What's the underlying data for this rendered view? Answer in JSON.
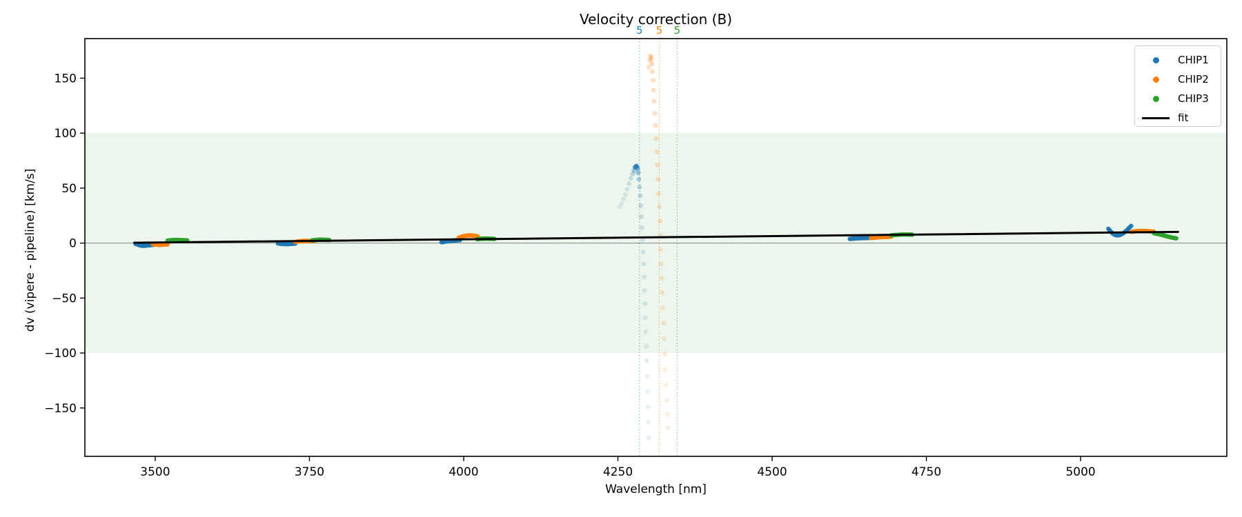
{
  "chart_data": {
    "type": "scatter",
    "title": "Velocity correction (B)",
    "xlabel": "Wavelength [nm]",
    "ylabel": "dv (vipere - pipeline) [km/s]",
    "xlim": [
      3386,
      5237
    ],
    "ylim": [
      -194,
      186
    ],
    "x_ticks": {
      "values": [
        3500,
        3750,
        4000,
        4250,
        4500,
        4750,
        5000
      ],
      "labels": [
        "3500",
        "3750",
        "4000",
        "4250",
        "4500",
        "4750",
        "5000"
      ]
    },
    "y_ticks": {
      "values": [
        150,
        100,
        50,
        0,
        -50,
        -100,
        -150
      ],
      "labels": [
        "150",
        "100",
        "50",
        "0",
        "−50",
        "−100",
        "−150"
      ]
    },
    "grid": false,
    "legend_position": "upper right",
    "band": {
      "ymin": -100,
      "ymax": 100,
      "color": "rgba(44,160,44,0.09)"
    },
    "zero_line": {
      "y": 0,
      "color": "#808080"
    },
    "vlines": [
      {
        "x": 4285,
        "label": "5",
        "color": "#1f77b4"
      },
      {
        "x": 4317,
        "label": "5",
        "color": "#ff7f0e"
      },
      {
        "x": 4346,
        "label": "5",
        "color": "#2ca02c"
      }
    ],
    "fit": {
      "name": "fit",
      "color": "#000000",
      "x": [
        3466,
        5158
      ],
      "y": [
        0.3,
        10.2
      ]
    },
    "series": [
      {
        "name": "CHIP1",
        "color": "#1f77b4",
        "segments": [
          [
            [
              3468,
              -0.6
            ],
            [
              3471,
              -1.2
            ],
            [
              3474,
              -1.8
            ],
            [
              3477,
              -2.3
            ],
            [
              3480,
              -2.5
            ],
            [
              3484,
              -2.4
            ],
            [
              3488,
              -2.1
            ],
            [
              3492,
              -1.9
            ],
            [
              3495,
              -1.7
            ],
            [
              3497,
              -1.6
            ]
          ],
          [
            [
              3699,
              -0.3
            ],
            [
              3703,
              -0.6
            ],
            [
              3707,
              -0.8
            ],
            [
              3711,
              -0.9
            ],
            [
              3715,
              -0.9
            ],
            [
              3719,
              -0.8
            ],
            [
              3723,
              -0.6
            ],
            [
              3727,
              -0.5
            ]
          ],
          [
            [
              3964,
              0.8
            ],
            [
              3968,
              1.1
            ],
            [
              3972,
              1.5
            ],
            [
              3976,
              1.8
            ],
            [
              3980,
              2.1
            ],
            [
              3984,
              2.3
            ],
            [
              3988,
              2.5
            ],
            [
              3991,
              2.6
            ],
            [
              3994,
              2.7
            ]
          ],
          [
            [
              4626,
              3.8
            ],
            [
              4631,
              4.0
            ],
            [
              4636,
              4.2
            ],
            [
              4641,
              4.4
            ],
            [
              4646,
              4.5
            ],
            [
              4651,
              4.6
            ],
            [
              4655,
              4.7
            ],
            [
              4660,
              4.9
            ]
          ],
          [
            [
              5045,
              13.0
            ],
            [
              5048,
              11.0
            ],
            [
              5051,
              9.2
            ],
            [
              5054,
              7.9
            ],
            [
              5057,
              7.2
            ],
            [
              5060,
              7.0
            ],
            [
              5063,
              7.3
            ],
            [
              5066,
              7.9
            ],
            [
              5069,
              8.9
            ],
            [
              5072,
              10.2
            ],
            [
              5075,
              11.7
            ],
            [
              5078,
              13.4
            ],
            [
              5080,
              14.6
            ],
            [
              5082,
              15.6
            ]
          ]
        ]
      },
      {
        "name": "CHIP2",
        "color": "#ff7f0e",
        "segments": [
          [
            [
              3496,
              -1.0
            ],
            [
              3500,
              -1.3
            ],
            [
              3504,
              -1.5
            ],
            [
              3508,
              -1.6
            ],
            [
              3512,
              -1.5
            ],
            [
              3516,
              -1.3
            ],
            [
              3520,
              -1.2
            ]
          ],
          [
            [
              3727,
              1.0
            ],
            [
              3731,
              1.4
            ],
            [
              3735,
              1.7
            ],
            [
              3739,
              1.9
            ],
            [
              3743,
              2.0
            ],
            [
              3747,
              2.0
            ],
            [
              3751,
              1.9
            ],
            [
              3757,
              1.7
            ]
          ],
          [
            [
              3992,
              5.0
            ],
            [
              3996,
              5.7
            ],
            [
              4000,
              6.3
            ],
            [
              4004,
              6.8
            ],
            [
              4008,
              7.0
            ],
            [
              4012,
              7.0
            ],
            [
              4016,
              6.8
            ],
            [
              4019,
              6.5
            ],
            [
              4023,
              6.1
            ]
          ],
          [
            [
              4660,
              4.6
            ],
            [
              4665,
              4.9
            ],
            [
              4670,
              5.1
            ],
            [
              4675,
              5.3
            ],
            [
              4680,
              5.5
            ],
            [
              4685,
              5.6
            ],
            [
              4689,
              5.7
            ],
            [
              4693,
              5.9
            ]
          ],
          [
            [
              5082,
              10.2
            ],
            [
              5087,
              10.6
            ],
            [
              5092,
              10.9
            ],
            [
              5097,
              11.0
            ],
            [
              5102,
              11.0
            ],
            [
              5107,
              10.9
            ],
            [
              5112,
              10.7
            ],
            [
              5119,
              10.3
            ]
          ]
        ]
      },
      {
        "name": "CHIP3",
        "color": "#2ca02c",
        "segments": [
          [
            [
              3520,
              2.2
            ],
            [
              3524,
              2.5
            ],
            [
              3528,
              2.7
            ],
            [
              3532,
              2.8
            ],
            [
              3536,
              2.8
            ],
            [
              3540,
              2.7
            ],
            [
              3546,
              2.6
            ],
            [
              3552,
              2.4
            ]
          ],
          [
            [
              3754,
              2.4
            ],
            [
              3758,
              2.7
            ],
            [
              3762,
              2.9
            ],
            [
              3766,
              3.1
            ],
            [
              3770,
              3.1
            ],
            [
              3774,
              3.0
            ],
            [
              3778,
              2.9
            ],
            [
              3782,
              2.8
            ]
          ],
          [
            [
              4022,
              3.5
            ],
            [
              4026,
              3.8
            ],
            [
              4030,
              4.0
            ],
            [
              4034,
              4.1
            ],
            [
              4038,
              4.1
            ],
            [
              4042,
              4.0
            ],
            [
              4046,
              3.9
            ],
            [
              4050,
              3.8
            ]
          ],
          [
            [
              4693,
              7.0
            ],
            [
              4698,
              7.3
            ],
            [
              4703,
              7.5
            ],
            [
              4708,
              7.7
            ],
            [
              4713,
              7.8
            ],
            [
              4718,
              7.8
            ],
            [
              4723,
              7.7
            ],
            [
              4727,
              7.6
            ]
          ],
          [
            [
              5119,
              9.0
            ],
            [
              5124,
              8.4
            ],
            [
              5129,
              7.8
            ],
            [
              5134,
              7.1
            ],
            [
              5139,
              6.3
            ],
            [
              5144,
              5.6
            ],
            [
              5149,
              4.9
            ],
            [
              5155,
              4.3
            ]
          ]
        ]
      },
      {
        "name": "fit",
        "color": "#000000"
      }
    ],
    "anomaly_trails": [
      {
        "chip": "CHIP1",
        "color": "#1f77b4",
        "points": [
          [
            4253,
            33,
            0.1
          ],
          [
            4256,
            36,
            0.11
          ],
          [
            4259,
            40,
            0.12
          ],
          [
            4262,
            44,
            0.13
          ],
          [
            4265,
            49,
            0.15
          ],
          [
            4268,
            54,
            0.17
          ],
          [
            4271,
            59,
            0.2
          ],
          [
            4274,
            63,
            0.26
          ],
          [
            4276,
            66,
            0.38
          ],
          [
            4278,
            69,
            0.75
          ],
          [
            4280,
            70,
            0.85
          ],
          [
            4282,
            68,
            0.62
          ],
          [
            4283,
            64,
            0.45
          ],
          [
            4284,
            58,
            0.34
          ],
          [
            4285,
            51,
            0.28
          ],
          [
            4286,
            43,
            0.24
          ],
          [
            4287,
            34,
            0.22
          ],
          [
            4288,
            24,
            0.2
          ],
          [
            4289,
            14,
            0.18
          ],
          [
            4290,
            3,
            0.17
          ],
          [
            4291,
            -8,
            0.16
          ],
          [
            4292,
            -19,
            0.15
          ],
          [
            4292.5,
            -31,
            0.15
          ],
          [
            4293,
            -43,
            0.14
          ],
          [
            4294,
            -55,
            0.14
          ],
          [
            4294.5,
            -68,
            0.13
          ],
          [
            4295,
            -81,
            0.13
          ],
          [
            4296,
            -94,
            0.12
          ],
          [
            4296.5,
            -107,
            0.12
          ],
          [
            4297,
            -121,
            0.11
          ],
          [
            4298,
            -135,
            0.11
          ],
          [
            4298.5,
            -149,
            0.1
          ],
          [
            4299,
            -163,
            0.1
          ],
          [
            4300,
            -177,
            0.1
          ]
        ]
      },
      {
        "chip": "CHIP2",
        "color": "#ff7f0e",
        "points": [
          [
            4300,
            160,
            0.22
          ],
          [
            4302,
            166,
            0.28
          ],
          [
            4303,
            170,
            0.33
          ],
          [
            4304,
            168,
            0.3
          ],
          [
            4305,
            163,
            0.28
          ],
          [
            4306,
            156,
            0.27
          ],
          [
            4307,
            148,
            0.26
          ],
          [
            4308,
            139,
            0.25
          ],
          [
            4309,
            129,
            0.24
          ],
          [
            4310,
            118,
            0.23
          ],
          [
            4311,
            107,
            0.23
          ],
          [
            4312,
            95,
            0.22
          ],
          [
            4313,
            83,
            0.22
          ],
          [
            4314,
            71,
            0.21
          ],
          [
            4315,
            58,
            0.21
          ],
          [
            4316,
            45,
            0.2
          ],
          [
            4317,
            33,
            0.2
          ],
          [
            4318,
            20,
            0.19
          ],
          [
            4318.5,
            7,
            0.19
          ],
          [
            4319,
            -6,
            0.18
          ],
          [
            4320,
            -19,
            0.18
          ],
          [
            4321,
            -32,
            0.17
          ],
          [
            4322,
            -45,
            0.17
          ],
          [
            4323,
            -59,
            0.16
          ],
          [
            4324,
            -73,
            0.16
          ],
          [
            4325,
            -87,
            0.15
          ],
          [
            4326,
            -101,
            0.15
          ],
          [
            4327,
            -115,
            0.14
          ],
          [
            4328,
            -129,
            0.13
          ],
          [
            4329,
            -143,
            0.13
          ],
          [
            4330,
            -156,
            0.12
          ],
          [
            4331,
            -168,
            0.12
          ]
        ]
      }
    ]
  },
  "legend": {
    "entries": [
      {
        "label": "CHIP1",
        "color": "#1f77b4",
        "marker": "dot"
      },
      {
        "label": "CHIP2",
        "color": "#ff7f0e",
        "marker": "dot"
      },
      {
        "label": "CHIP3",
        "color": "#2ca02c",
        "marker": "dot"
      },
      {
        "label": "fit",
        "color": "#000000",
        "marker": "line"
      }
    ]
  }
}
